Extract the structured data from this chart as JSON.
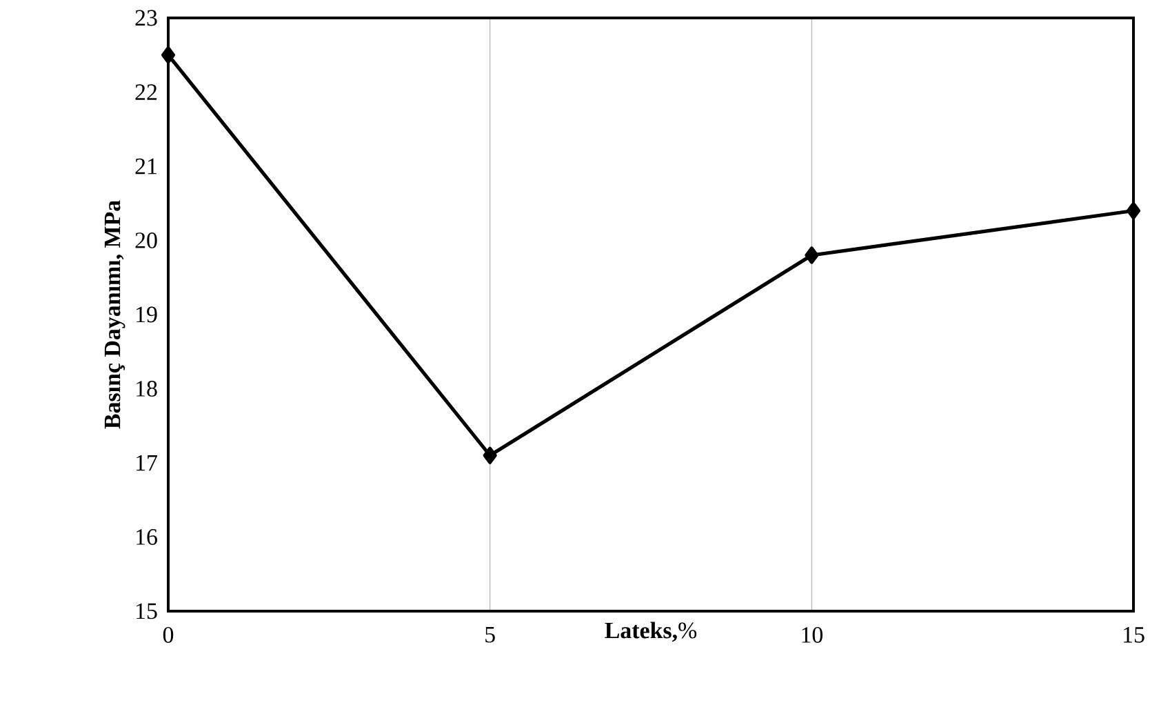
{
  "chart_data": {
    "type": "line",
    "xlabel": "**Lateks,**%",
    "ylabel": "Basınç Dayanımı, MPa",
    "x": [
      0,
      5,
      10,
      15
    ],
    "series": [
      {
        "color": "#000000",
        "values": [
          22.5,
          17.1,
          19.8,
          20.4
        ]
      }
    ],
    "xlim": [
      0,
      15
    ],
    "xticks": [
      0,
      5,
      10,
      15
    ],
    "ylim": [
      15,
      23
    ],
    "yticks": [
      15,
      16,
      17,
      18,
      19,
      20,
      21,
      22,
      23
    ],
    "grid": "x",
    "marker": "diamond",
    "line_style": "solid"
  }
}
